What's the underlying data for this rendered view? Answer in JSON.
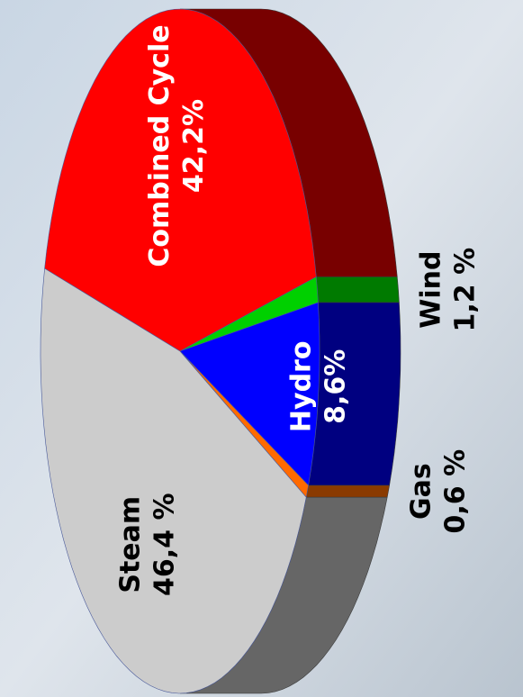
{
  "chart_data": {
    "type": "pie",
    "categories": [
      "Combined Cycle",
      "Wind",
      "Hydro",
      "Gas",
      "Steam"
    ],
    "values": [
      42.2,
      1.2,
      8.6,
      0.6,
      46.4
    ],
    "value_labels": [
      "42,2%",
      "1,2 %",
      "8,6%",
      "0,6 %",
      "46,4 %"
    ],
    "colors": [
      "#ff0000",
      "#00d000",
      "#0000ff",
      "#ff6a00",
      "#cccccc"
    ],
    "side_colors": [
      "#780000",
      "#007a00",
      "#000080",
      "#8a3a00",
      "#666666"
    ]
  }
}
